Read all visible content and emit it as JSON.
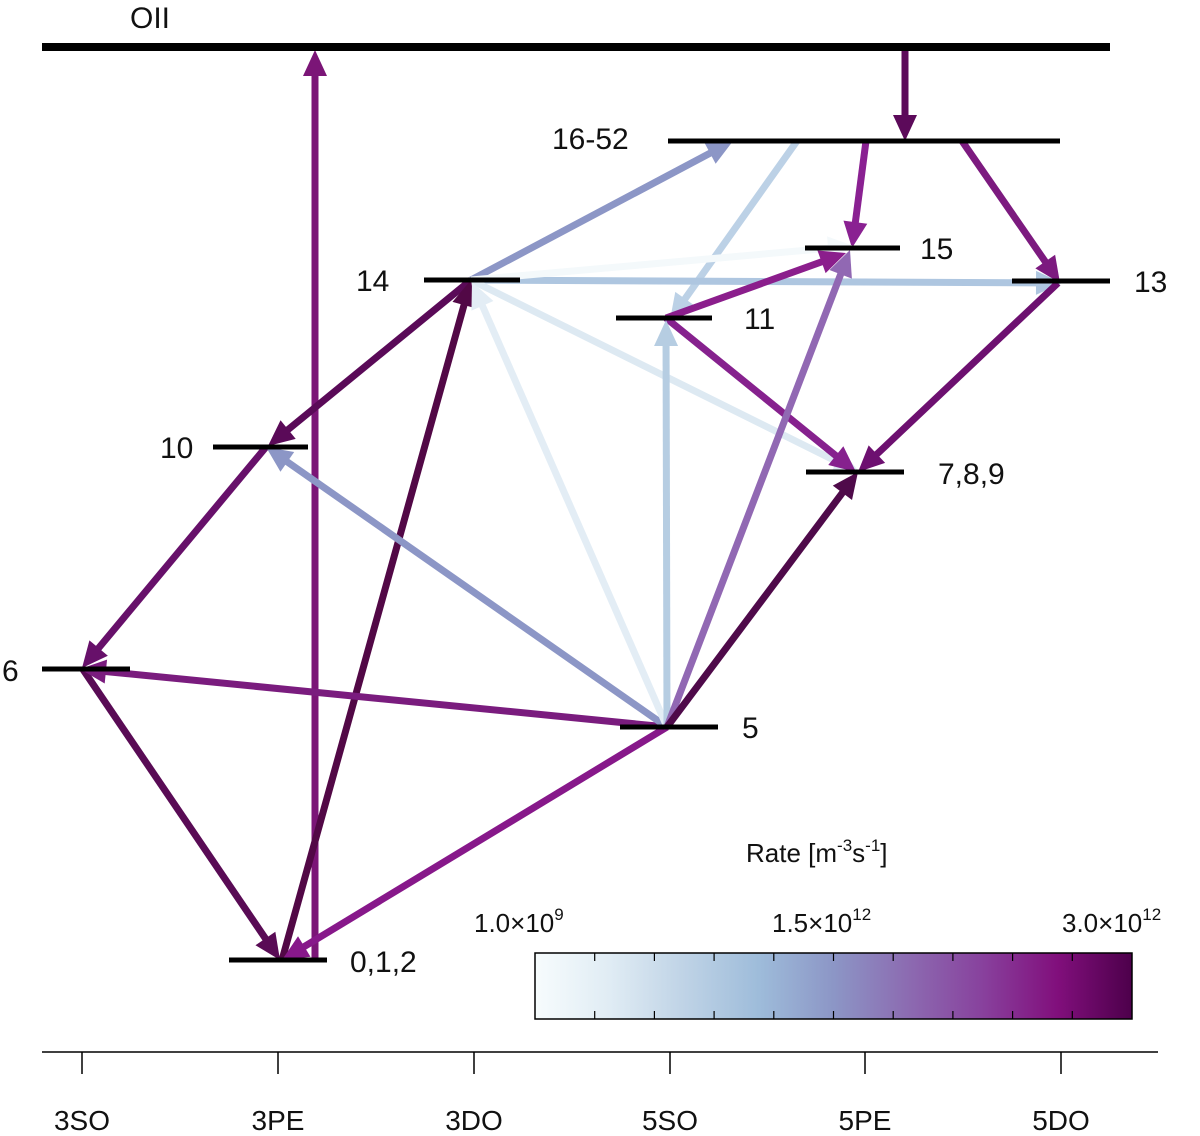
{
  "title": "OII",
  "levels": [
    {
      "id": "OII",
      "label": "OII"
    },
    {
      "id": "L16_52",
      "label": "16-52"
    },
    {
      "id": "L15",
      "label": "15"
    },
    {
      "id": "L14",
      "label": "14"
    },
    {
      "id": "L13",
      "label": "13"
    },
    {
      "id": "L11",
      "label": "11"
    },
    {
      "id": "L10",
      "label": "10"
    },
    {
      "id": "L789",
      "label": "7,8,9"
    },
    {
      "id": "L6",
      "label": "6"
    },
    {
      "id": "L5",
      "label": "5"
    },
    {
      "id": "L012",
      "label": "0,1,2"
    }
  ],
  "x_axis": {
    "categories": [
      "3SO",
      "3PE",
      "3DO",
      "5SO",
      "5PE",
      "5DO"
    ]
  },
  "colorbar": {
    "title": "Rate [m",
    "title_sup1": "-3",
    "title_mid": "s",
    "title_sup2": "-1",
    "title_end": "]",
    "tick_min": "1.0×10",
    "tick_min_exp": "9",
    "tick_mid": "1.5×10",
    "tick_mid_exp": "12",
    "tick_max": "3.0×10",
    "tick_max_exp": "12",
    "colors": [
      "#f7fcfd",
      "#e0ecf4",
      "#bfd3e6",
      "#9ebcda",
      "#8c96c6",
      "#8c6bb1",
      "#88419d",
      "#810f7c",
      "#4d004b"
    ]
  },
  "transitions": [
    {
      "from": "OII",
      "to": "L012",
      "color": "#7b1577"
    },
    {
      "from": "OII",
      "to": "L16_52",
      "color": "#5c0a5a"
    },
    {
      "from": "L16_52",
      "to": "L15",
      "color": "#8a2192"
    },
    {
      "from": "L16_52",
      "to": "L13",
      "color": "#7c1a7f"
    },
    {
      "from": "L16_52",
      "to": "L11",
      "color": "#bcd1e6"
    },
    {
      "from": "L14",
      "to": "L16_52",
      "color": "#8c96c6"
    },
    {
      "from": "L14",
      "to": "L13",
      "color": "#aec6e0"
    },
    {
      "from": "L14",
      "to": "L15",
      "color": "#f4f9fb"
    },
    {
      "from": "L14",
      "to": "L10",
      "color": "#5a0a58"
    },
    {
      "from": "L14",
      "to": "L789",
      "color": "#dde9f2"
    },
    {
      "from": "L11",
      "to": "L15",
      "color": "#8b1e8c"
    },
    {
      "from": "L11",
      "to": "L789",
      "color": "#86218e"
    },
    {
      "from": "L13",
      "to": "L789",
      "color": "#6d1070"
    },
    {
      "from": "L10",
      "to": "L6",
      "color": "#67106a"
    },
    {
      "from": "L6",
      "to": "L012",
      "color": "#590b55"
    },
    {
      "from": "L012",
      "to": "L14",
      "color": "#520846"
    },
    {
      "from": "L5",
      "to": "L6",
      "color": "#7a1c7e"
    },
    {
      "from": "L5",
      "to": "L012",
      "color": "#87188a"
    },
    {
      "from": "L5",
      "to": "L10",
      "color": "#8c96c6"
    },
    {
      "from": "L5",
      "to": "L14",
      "color": "#e3edf5"
    },
    {
      "from": "L5",
      "to": "L11",
      "color": "#b6cde2"
    },
    {
      "from": "L5",
      "to": "L15",
      "color": "#9168b3"
    },
    {
      "from": "L5",
      "to": "L789",
      "color": "#4f0a4a"
    }
  ]
}
